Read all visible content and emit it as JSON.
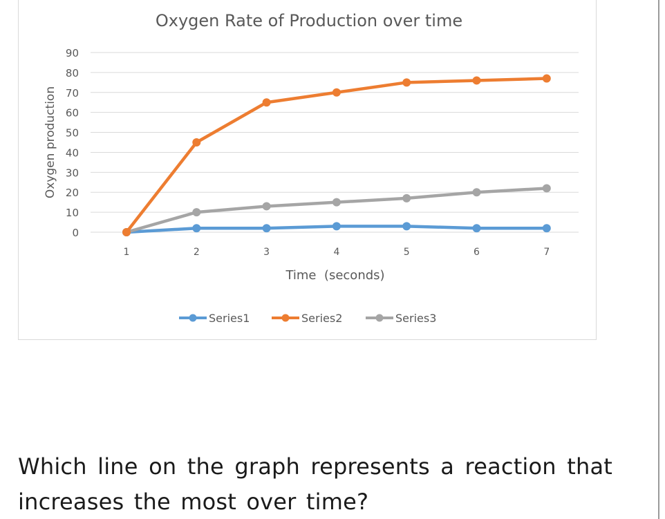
{
  "question": {
    "text": "Which line on the graph represents a reaction that increases the most over time?"
  },
  "colors": {
    "series1": "#5b9bd5",
    "series2": "#ed7d31",
    "series3": "#a5a5a5",
    "grid": "#d9d9d9",
    "axis_text": "#595959"
  },
  "chart_data": {
    "type": "line",
    "title": "Oxygen Rate of Production over time",
    "xlabel": "Time  (seconds)",
    "ylabel": "Oxygen production",
    "x": [
      1,
      2,
      3,
      4,
      5,
      6,
      7
    ],
    "ylim": [
      0,
      90
    ],
    "yticks": [
      0,
      10,
      20,
      30,
      40,
      50,
      60,
      70,
      80,
      90
    ],
    "grid": true,
    "legend_position": "bottom",
    "series": [
      {
        "name": "Series1",
        "values": [
          0,
          2,
          2,
          3,
          3,
          2,
          2
        ],
        "color": "#5b9bd5"
      },
      {
        "name": "Series2",
        "values": [
          0,
          45,
          65,
          70,
          75,
          76,
          77
        ],
        "color": "#ed7d31"
      },
      {
        "name": "Series3",
        "values": [
          0,
          10,
          13,
          15,
          17,
          20,
          22
        ],
        "color": "#a5a5a5"
      }
    ]
  }
}
